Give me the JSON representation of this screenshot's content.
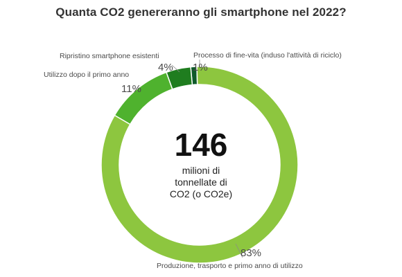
{
  "chart_data": {
    "type": "pie",
    "title": "Quanta CO2 genereranno gli smartphone nel 2022?",
    "donut": true,
    "center": {
      "value": "146",
      "unit_lines": [
        "milioni di",
        "tonnellate di",
        "CO2 (o CO2e)"
      ]
    },
    "slices": [
      {
        "label": "Produzione, trasporto e primo anno di utilizzo",
        "value": 83,
        "display": "83%",
        "color": "#8dc63f"
      },
      {
        "label": "Utilizzo dopo il primo anno",
        "value": 11,
        "display": "11%",
        "color": "#4fb22e"
      },
      {
        "label": "Ripristino smartphone esistenti",
        "value": 4,
        "display": "4%",
        "color": "#1f7d1f"
      },
      {
        "label": "Processo di fine-vita (induso l'attività di riciclo)",
        "value": 1,
        "display": "1%",
        "color": "#0e5a2a"
      }
    ]
  }
}
